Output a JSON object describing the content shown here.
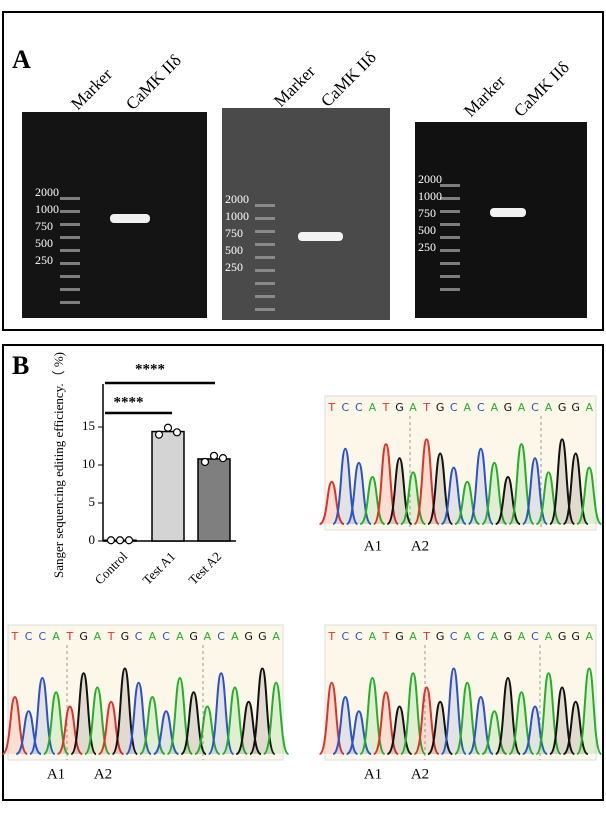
{
  "panel_a": {
    "label": "A",
    "gels": [
      {
        "lanes": [
          "Marker",
          "CaMK IIδ"
        ],
        "ladder": [
          "2000",
          "1000",
          "750",
          "500",
          "250"
        ]
      },
      {
        "lanes": [
          "Marker",
          "CaMK IIδ"
        ],
        "ladder": [
          "2000",
          "1000",
          "750",
          "500",
          "250"
        ]
      },
      {
        "lanes": [
          "Marker",
          "CaMK IIδ"
        ],
        "ladder": [
          "2000",
          "1000",
          "750",
          "500",
          "250"
        ]
      }
    ]
  },
  "panel_b": {
    "label": "B",
    "chromatograms": [
      {
        "sequence": [
          "T",
          "C",
          "C",
          "A",
          "T",
          "G",
          "A",
          "T",
          "G",
          "C",
          "A",
          "C",
          "A",
          "G",
          "A",
          "C",
          "A",
          "G",
          "G",
          "A"
        ],
        "markers": [
          "A1",
          "A2"
        ]
      },
      {
        "sequence": [
          "T",
          "C",
          "C",
          "A",
          "T",
          "G",
          "A",
          "T",
          "G",
          "C",
          "A",
          "C",
          "A",
          "G",
          "A",
          "C",
          "A",
          "G",
          "G",
          "A"
        ],
        "markers": [
          "A1",
          "A2"
        ]
      },
      {
        "sequence": [
          "T",
          "C",
          "C",
          "A",
          "T",
          "G",
          "A",
          "T",
          "G",
          "C",
          "A",
          "C",
          "A",
          "G",
          "A",
          "C",
          "A",
          "G",
          "G",
          "A"
        ],
        "markers": [
          "A1",
          "A2"
        ]
      }
    ]
  },
  "chart_data": {
    "type": "bar",
    "ylabel": "Sanger sequencing editing efficiency.（ %)",
    "categories": [
      "Control",
      "Test A1",
      "Test A2"
    ],
    "values": [
      0.1,
      14.4,
      10.8
    ],
    "colors": [
      "#ffffff",
      "#d4d4d4",
      "#7f7f7f"
    ],
    "points": [
      [
        0.1,
        0.1,
        0.1
      ],
      [
        14.0,
        14.9,
        14.3
      ],
      [
        10.4,
        11.2,
        10.9
      ]
    ],
    "ylim": [
      0,
      20
    ],
    "yticks": [
      0,
      5,
      10,
      15
    ],
    "significance": [
      "****",
      "****"
    ]
  }
}
